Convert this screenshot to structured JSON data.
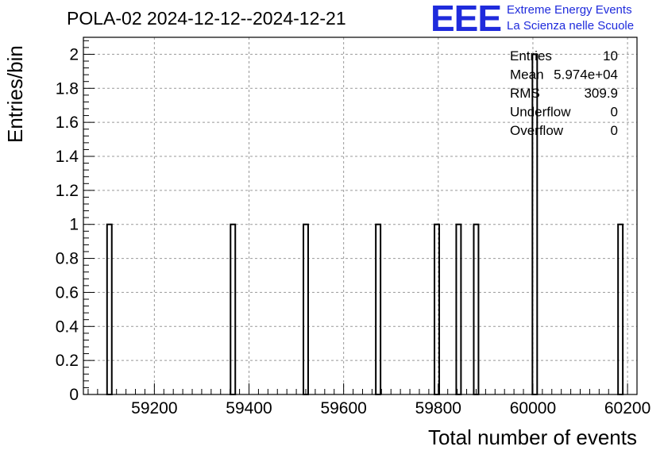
{
  "header": {
    "title": "POLA-02 2024-12-12--2024-12-21",
    "logo_mark": "EEE",
    "logo_line1": "Extreme Energy Events",
    "logo_line2": "La Scienza nelle Scuole"
  },
  "stats": [
    {
      "label": "Entries",
      "value": "10"
    },
    {
      "label": "Mean",
      "value": "5.974e+04"
    },
    {
      "label": "RMS",
      "value": "309.9"
    },
    {
      "label": "Underflow",
      "value": "0"
    },
    {
      "label": "Overflow",
      "value": "0"
    }
  ],
  "chart_data": {
    "type": "bar",
    "title": "POLA-02 2024-12-12--2024-12-21",
    "xlabel": "Total number of events",
    "ylabel": "Entries/bin",
    "xlim": [
      59050,
      60220
    ],
    "ylim": [
      0,
      2.1
    ],
    "bin_width": 10,
    "grid": true,
    "x_ticks": [
      59200,
      59400,
      59600,
      59800,
      60000,
      60200
    ],
    "y_ticks": [
      0,
      0.2,
      0.4,
      0.6,
      0.8,
      1,
      1.2,
      1.4,
      1.6,
      1.8,
      2
    ],
    "bins": [
      {
        "x": 59105,
        "count": 1
      },
      {
        "x": 59366,
        "count": 1
      },
      {
        "x": 59520,
        "count": 1
      },
      {
        "x": 59673,
        "count": 1
      },
      {
        "x": 59797,
        "count": 1
      },
      {
        "x": 59843,
        "count": 1
      },
      {
        "x": 59880,
        "count": 1
      },
      {
        "x": 60004,
        "count": 2
      },
      {
        "x": 60185,
        "count": 1
      }
    ],
    "colors": {
      "line": "#000000",
      "grid": "#999999",
      "logo": "#1f2bdc"
    }
  }
}
